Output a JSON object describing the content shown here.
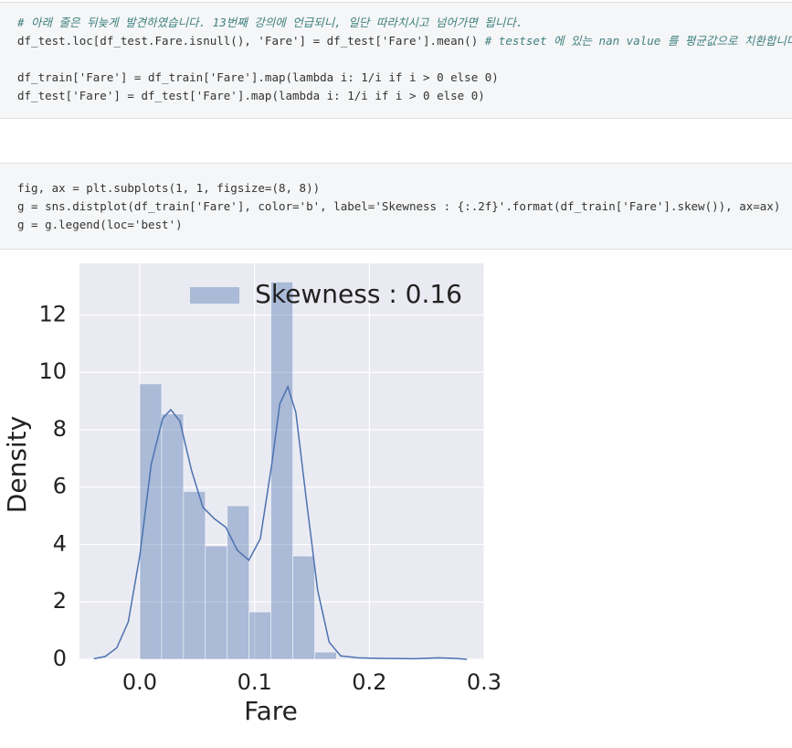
{
  "cells": [
    {
      "blocks": [
        [
          {
            "comment": "# 아래 줄은 뒤늦게 발견하였습니다. 13번째 강의에 언급되니, 일단 따라치시고 넘어가면 됩니다."
          },
          {
            "code": "df_test.loc[df_test.Fare.isnull(), 'Fare'] = df_test['Fare'].mean() ",
            "comment": "# testset 에 있는 nan value 를 평균값으로 치환합니다."
          }
        ],
        [
          {
            "code": "df_train['Fare'] = df_train['Fare'].map(lambda i: 1/i if i > 0 else 0)"
          },
          {
            "code": "df_test['Fare'] = df_test['Fare'].map(lambda i: 1/i if i > 0 else 0)"
          }
        ]
      ]
    },
    {
      "blocks": [
        [
          {
            "code": "fig, ax = plt.subplots(1, 1, figsize=(8, 8))"
          },
          {
            "code": "g = sns.distplot(df_train['Fare'], color='b', label='Skewness : {:.2f}'.format(df_train['Fare'].skew()), ax=ax)"
          },
          {
            "code": "g = g.legend(loc='best')"
          }
        ]
      ]
    }
  ],
  "chart_data": {
    "type": "histogram",
    "xlabel": "Fare",
    "ylabel": "Density",
    "bins": [
      0,
      0.01905,
      0.0381,
      0.05714,
      0.07619,
      0.09524,
      0.11429,
      0.13333,
      0.15238,
      0.17143,
      0.19048,
      0.20952,
      0.22857,
      0.24762,
      0.26667,
      0.28571
    ],
    "counts": [
      9.6,
      8.55,
      5.85,
      3.95,
      5.35,
      1.65,
      13.15,
      3.6,
      0.25,
      0.02,
      0.02,
      0,
      0,
      0.02,
      0.02
    ],
    "color": "#4c72b0",
    "kde": {
      "x": [
        -0.04,
        -0.03,
        -0.02,
        -0.01,
        0.0,
        0.01,
        0.02,
        0.027,
        0.035,
        0.045,
        0.055,
        0.065,
        0.075,
        0.085,
        0.095,
        0.105,
        0.115,
        0.122,
        0.129,
        0.136,
        0.145,
        0.155,
        0.165,
        0.175,
        0.19,
        0.21,
        0.24,
        0.26,
        0.275,
        0.285
      ],
      "values": [
        0.02,
        0.1,
        0.4,
        1.3,
        3.6,
        6.8,
        8.4,
        8.7,
        8.3,
        6.6,
        5.3,
        4.9,
        4.6,
        3.8,
        3.45,
        4.2,
        6.8,
        8.9,
        9.5,
        8.6,
        5.6,
        2.4,
        0.6,
        0.12,
        0.05,
        0.03,
        0.02,
        0.05,
        0.03,
        0.0
      ]
    },
    "legend_label": "Skewness : 0.16",
    "legend": "upper right",
    "xlim": [
      -0.0525,
      0.3
    ],
    "ylim": [
      0,
      13.8
    ],
    "xticks": [
      {
        "value": 0,
        "label": "0.0"
      },
      0.1,
      0.2,
      0.3
    ],
    "yticks": [
      0,
      2,
      4,
      6,
      8,
      10,
      12
    ],
    "grid": true
  }
}
